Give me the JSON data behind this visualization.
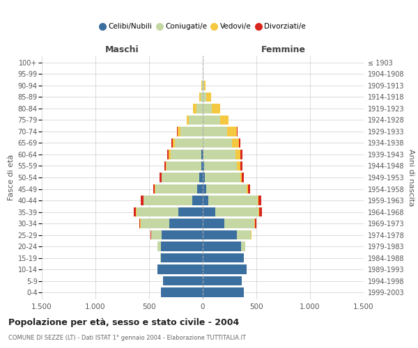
{
  "age_groups": [
    "0-4",
    "5-9",
    "10-14",
    "15-19",
    "20-24",
    "25-29",
    "30-34",
    "35-39",
    "40-44",
    "45-49",
    "50-54",
    "55-59",
    "60-64",
    "65-69",
    "70-74",
    "75-79",
    "80-84",
    "85-89",
    "90-94",
    "95-99",
    "100+"
  ],
  "birth_years": [
    "1999-2003",
    "1994-1998",
    "1989-1993",
    "1984-1988",
    "1979-1983",
    "1974-1978",
    "1969-1973",
    "1964-1968",
    "1959-1963",
    "1954-1958",
    "1949-1953",
    "1944-1948",
    "1939-1943",
    "1934-1938",
    "1929-1933",
    "1924-1928",
    "1919-1923",
    "1914-1918",
    "1909-1913",
    "1904-1908",
    "≤ 1903"
  ],
  "colors": {
    "celibe": "#3b6fa0",
    "coniugato": "#c5d8a4",
    "vedovo": "#f5c842",
    "divorziato": "#d9261c"
  },
  "males": {
    "celibe": [
      390,
      370,
      420,
      390,
      390,
      380,
      310,
      230,
      100,
      50,
      30,
      15,
      10,
      0,
      0,
      0,
      0,
      0,
      0,
      0,
      0
    ],
    "coniugato": [
      0,
      0,
      2,
      5,
      30,
      100,
      270,
      390,
      450,
      390,
      350,
      320,
      290,
      260,
      210,
      130,
      60,
      20,
      8,
      3,
      1
    ],
    "vedovo": [
      0,
      0,
      0,
      0,
      0,
      0,
      3,
      5,
      5,
      5,
      5,
      10,
      15,
      20,
      25,
      20,
      30,
      10,
      2,
      0,
      0
    ],
    "divorziato": [
      0,
      0,
      0,
      0,
      0,
      5,
      10,
      20,
      20,
      15,
      15,
      15,
      15,
      10,
      5,
      0,
      0,
      0,
      0,
      0,
      0
    ]
  },
  "females": {
    "nubile": [
      385,
      365,
      410,
      380,
      360,
      320,
      200,
      120,
      50,
      30,
      20,
      10,
      5,
      0,
      0,
      0,
      0,
      0,
      0,
      0,
      0
    ],
    "coniugata": [
      0,
      0,
      2,
      5,
      35,
      130,
      280,
      400,
      460,
      380,
      330,
      310,
      300,
      270,
      230,
      160,
      85,
      35,
      15,
      5,
      2
    ],
    "vedova": [
      0,
      0,
      0,
      0,
      0,
      2,
      5,
      8,
      8,
      10,
      15,
      30,
      45,
      70,
      90,
      80,
      80,
      40,
      10,
      2,
      0
    ],
    "divorziata": [
      0,
      0,
      0,
      0,
      2,
      5,
      15,
      25,
      25,
      20,
      20,
      20,
      20,
      10,
      5,
      0,
      0,
      0,
      0,
      0,
      0
    ]
  },
  "title": "Popolazione per età, sesso e stato civile - 2004",
  "subtitle": "COMUNE DI SEZZE (LT) - Dati ISTAT 1° gennaio 2004 - Elaborazione TUTTITALIA.IT",
  "xlabel_maschi": "Maschi",
  "xlabel_femmine": "Femmine",
  "ylabel_left": "Fasce di età",
  "ylabel_right": "Anni di nascita",
  "xlim": 1500,
  "xticks": [
    -1500,
    -1000,
    -500,
    0,
    500,
    1000,
    1500
  ],
  "xticklabels": [
    "1.500",
    "1.000",
    "500",
    "0",
    "500",
    "1.000",
    "1.500"
  ],
  "legend_labels": [
    "Celibi/Nubili",
    "Coniugati/e",
    "Vedovi/e",
    "Divorziati/e"
  ],
  "legend_colors": [
    "#3b6fa0",
    "#c5d8a4",
    "#f5c842",
    "#d9261c"
  ],
  "background_color": "#ffffff",
  "grid_color": "#cccccc"
}
